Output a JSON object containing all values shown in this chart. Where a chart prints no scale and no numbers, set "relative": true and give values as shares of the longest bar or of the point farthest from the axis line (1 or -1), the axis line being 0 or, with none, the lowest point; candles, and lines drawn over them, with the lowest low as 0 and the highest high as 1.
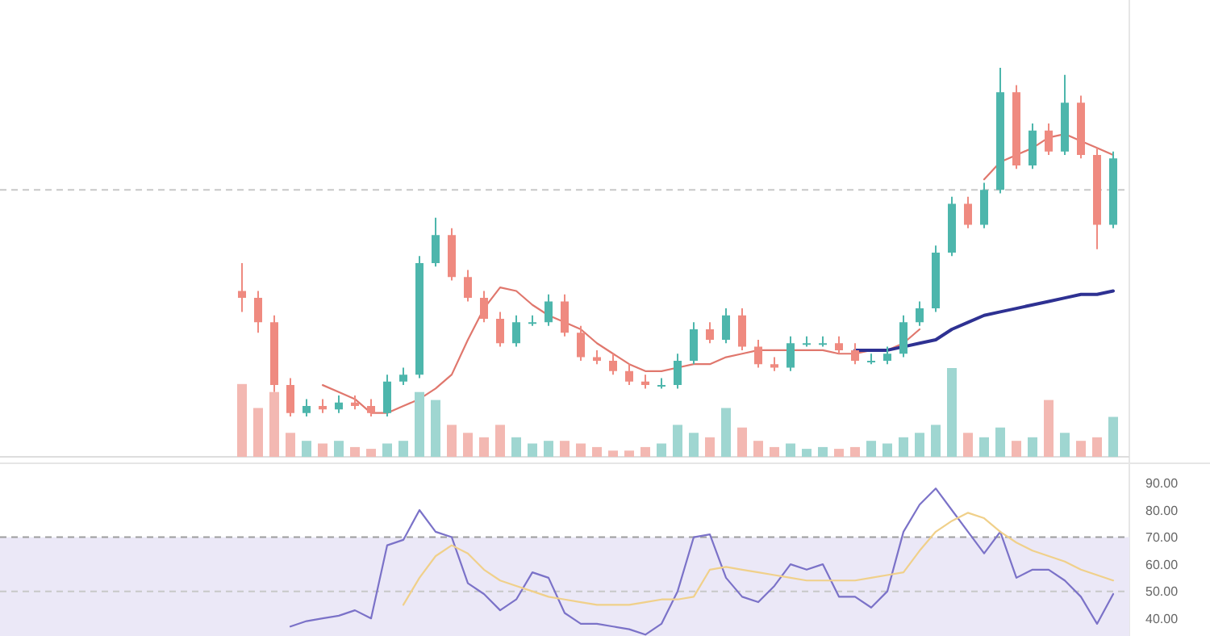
{
  "chart_data": [
    {
      "type": "candlestick",
      "relative": true,
      "tick_labels": false,
      "categories": [
        null,
        null,
        null,
        null,
        null,
        null,
        null,
        null,
        null,
        null,
        null,
        null,
        null,
        null,
        null,
        null,
        null,
        null,
        null,
        null,
        null,
        null,
        null,
        null,
        null,
        null,
        null,
        null,
        null,
        null,
        null,
        null,
        null,
        null,
        null,
        null,
        null,
        null,
        null,
        null,
        null,
        null,
        null,
        null,
        null,
        null,
        null,
        null,
        null,
        null,
        null,
        null,
        null,
        null,
        null
      ],
      "ohlc": [
        [
          0.36,
          0.44,
          0.3,
          0.34
        ],
        [
          0.34,
          0.36,
          0.24,
          0.27
        ],
        [
          0.27,
          0.29,
          0.07,
          0.09
        ],
        [
          0.09,
          0.11,
          0,
          0.01
        ],
        [
          0.01,
          0.05,
          0,
          0.03
        ],
        [
          0.03,
          0.05,
          0.01,
          0.02
        ],
        [
          0.02,
          0.06,
          0.01,
          0.04
        ],
        [
          0.04,
          0.06,
          0.02,
          0.03
        ],
        [
          0.03,
          0.05,
          0,
          0.01
        ],
        [
          0.01,
          0.12,
          0,
          0.1
        ],
        [
          0.1,
          0.14,
          0.09,
          0.12
        ],
        [
          0.12,
          0.46,
          0.11,
          0.44
        ],
        [
          0.44,
          0.57,
          0.43,
          0.52
        ],
        [
          0.52,
          0.54,
          0.39,
          0.4
        ],
        [
          0.4,
          0.42,
          0.33,
          0.34
        ],
        [
          0.34,
          0.36,
          0.27,
          0.28
        ],
        [
          0.28,
          0.3,
          0.2,
          0.21
        ],
        [
          0.21,
          0.29,
          0.2,
          0.27
        ],
        [
          0.27,
          0.29,
          0.26,
          0.27
        ],
        [
          0.27,
          0.35,
          0.26,
          0.33
        ],
        [
          0.33,
          0.35,
          0.23,
          0.24
        ],
        [
          0.24,
          0.26,
          0.16,
          0.17
        ],
        [
          0.17,
          0.19,
          0.15,
          0.16
        ],
        [
          0.16,
          0.18,
          0.12,
          0.13
        ],
        [
          0.13,
          0.15,
          0.09,
          0.1
        ],
        [
          0.1,
          0.12,
          0.08,
          0.09
        ],
        [
          0.09,
          0.11,
          0.08,
          0.09
        ],
        [
          0.09,
          0.18,
          0.08,
          0.16
        ],
        [
          0.16,
          0.27,
          0.15,
          0.25
        ],
        [
          0.25,
          0.27,
          0.21,
          0.22
        ],
        [
          0.22,
          0.31,
          0.21,
          0.29
        ],
        [
          0.29,
          0.31,
          0.19,
          0.2
        ],
        [
          0.2,
          0.22,
          0.14,
          0.15
        ],
        [
          0.15,
          0.17,
          0.13,
          0.14
        ],
        [
          0.14,
          0.23,
          0.13,
          0.21
        ],
        [
          0.21,
          0.23,
          0.2,
          0.21
        ],
        [
          0.21,
          0.23,
          0.2,
          0.21
        ],
        [
          0.21,
          0.23,
          0.18,
          0.19
        ],
        [
          0.19,
          0.21,
          0.15,
          0.16
        ],
        [
          0.16,
          0.18,
          0.15,
          0.16
        ],
        [
          0.16,
          0.2,
          0.15,
          0.18
        ],
        [
          0.18,
          0.29,
          0.17,
          0.27
        ],
        [
          0.27,
          0.33,
          0.26,
          0.31
        ],
        [
          0.31,
          0.49,
          0.3,
          0.47
        ],
        [
          0.47,
          0.63,
          0.46,
          0.61
        ],
        [
          0.61,
          0.63,
          0.54,
          0.55
        ],
        [
          0.55,
          0.67,
          0.54,
          0.65
        ],
        [
          0.65,
          1,
          0.64,
          0.93
        ],
        [
          0.93,
          0.95,
          0.71,
          0.72
        ],
        [
          0.72,
          0.84,
          0.71,
          0.82
        ],
        [
          0.82,
          0.84,
          0.75,
          0.76
        ],
        [
          0.76,
          0.98,
          0.75,
          0.9
        ],
        [
          0.9,
          0.92,
          0.74,
          0.75
        ],
        [
          0.75,
          0.77,
          0.48,
          0.55
        ],
        [
          0.55,
          0.76,
          0.54,
          0.74
        ]
      ],
      "colors": [
        "#ef8a80",
        "#ef8a80",
        "#ef8a80",
        "#ef8a80",
        "#4db6ac",
        "#ef8a80",
        "#4db6ac",
        "#ef8a80",
        "#ef8a80",
        "#4db6ac",
        "#4db6ac",
        "#4db6ac",
        "#4db6ac",
        "#ef8a80",
        "#ef8a80",
        "#ef8a80",
        "#ef8a80",
        "#4db6ac",
        "#4db6ac",
        "#4db6ac",
        "#ef8a80",
        "#ef8a80",
        "#ef8a80",
        "#ef8a80",
        "#ef8a80",
        "#ef8a80",
        "#4db6ac",
        "#4db6ac",
        "#4db6ac",
        "#ef8a80",
        "#4db6ac",
        "#ef8a80",
        "#ef8a80",
        "#ef8a80",
        "#4db6ac",
        "#4db6ac",
        "#4db6ac",
        "#ef8a80",
        "#ef8a80",
        "#4db6ac",
        "#4db6ac",
        "#4db6ac",
        "#4db6ac",
        "#4db6ac",
        "#4db6ac",
        "#ef8a80",
        "#4db6ac",
        "#4db6ac",
        "#ef8a80",
        "#4db6ac",
        "#ef8a80",
        "#4db6ac",
        "#ef8a80",
        "#ef8a80",
        "#4db6ac"
      ],
      "series": [
        {
          "type": "line",
          "color": "#e0776d",
          "values": [
            null,
            null,
            null,
            null,
            null,
            0.09,
            0.07,
            0.05,
            0.01,
            0.01,
            0.03,
            0.05,
            0.08,
            0.12,
            0.22,
            0.31,
            0.37,
            0.36,
            0.32,
            0.29,
            0.27,
            0.25,
            0.21,
            0.18,
            0.15,
            0.13,
            0.13,
            0.14,
            0.15,
            0.15,
            0.17,
            0.18,
            0.19,
            0.19,
            0.19,
            0.19,
            0.19,
            0.18,
            0.18,
            0.19,
            0.19,
            0.21,
            0.25,
            null,
            null,
            null,
            0.68,
            0.73,
            0.75,
            0.77,
            0.8,
            0.81,
            0.79,
            0.77,
            0.75
          ]
        },
        {
          "type": "line",
          "color": "#2e3192",
          "values": [
            null,
            null,
            null,
            null,
            null,
            null,
            null,
            null,
            null,
            null,
            null,
            null,
            null,
            null,
            null,
            null,
            null,
            null,
            null,
            null,
            null,
            null,
            null,
            null,
            null,
            null,
            null,
            null,
            null,
            null,
            null,
            null,
            null,
            null,
            null,
            null,
            null,
            null,
            0.19,
            0.19,
            0.19,
            0.2,
            0.21,
            0.22,
            0.25,
            0.27,
            0.29,
            0.3,
            0.31,
            0.32,
            0.33,
            0.34,
            0.35,
            0.35,
            0.36
          ]
        }
      ],
      "ref_lines": [
        {
          "axis": "y",
          "value": 0.65,
          "line_style": "dashed",
          "color": "#c8c8c8"
        }
      ]
    },
    {
      "type": "bar",
      "relative": true,
      "tick_labels": false,
      "categories": [
        null,
        null,
        null,
        null,
        null,
        null,
        null,
        null,
        null,
        null,
        null,
        null,
        null,
        null,
        null,
        null,
        null,
        null,
        null,
        null,
        null,
        null,
        null,
        null,
        null,
        null,
        null,
        null,
        null,
        null,
        null,
        null,
        null,
        null,
        null,
        null,
        null,
        null,
        null,
        null,
        null,
        null,
        null,
        null,
        null,
        null,
        null,
        null,
        null,
        null,
        null,
        null,
        null,
        null,
        null
      ],
      "values": [
        0.82,
        0.55,
        0.73,
        0.27,
        0.18,
        0.15,
        0.18,
        0.11,
        0.09,
        0.15,
        0.18,
        0.73,
        0.64,
        0.36,
        0.27,
        0.22,
        0.36,
        0.22,
        0.15,
        0.18,
        0.18,
        0.15,
        0.11,
        0.07,
        0.07,
        0.11,
        0.15,
        0.36,
        0.27,
        0.22,
        0.55,
        0.33,
        0.18,
        0.11,
        0.15,
        0.09,
        0.11,
        0.09,
        0.11,
        0.18,
        0.15,
        0.22,
        0.27,
        0.36,
        1,
        0.27,
        0.22,
        0.33,
        0.18,
        0.22,
        0.64,
        0.27,
        0.18,
        0.22,
        0.45
      ],
      "colors": [
        "#f3b8b2",
        "#f3b8b2",
        "#f3b8b2",
        "#f3b8b2",
        "#9fd6d1",
        "#f3b8b2",
        "#9fd6d1",
        "#f3b8b2",
        "#f3b8b2",
        "#9fd6d1",
        "#9fd6d1",
        "#9fd6d1",
        "#9fd6d1",
        "#f3b8b2",
        "#f3b8b2",
        "#f3b8b2",
        "#f3b8b2",
        "#9fd6d1",
        "#9fd6d1",
        "#9fd6d1",
        "#f3b8b2",
        "#f3b8b2",
        "#f3b8b2",
        "#f3b8b2",
        "#f3b8b2",
        "#f3b8b2",
        "#9fd6d1",
        "#9fd6d1",
        "#9fd6d1",
        "#f3b8b2",
        "#9fd6d1",
        "#f3b8b2",
        "#f3b8b2",
        "#f3b8b2",
        "#9fd6d1",
        "#9fd6d1",
        "#9fd6d1",
        "#f3b8b2",
        "#f3b8b2",
        "#9fd6d1",
        "#9fd6d1",
        "#9fd6d1",
        "#9fd6d1",
        "#9fd6d1",
        "#9fd6d1",
        "#f3b8b2",
        "#9fd6d1",
        "#9fd6d1",
        "#f3b8b2",
        "#9fd6d1",
        "#f3b8b2",
        "#9fd6d1",
        "#f3b8b2",
        "#f3b8b2",
        "#9fd6d1"
      ]
    },
    {
      "type": "line",
      "tick_labels": "y",
      "ylim": [
        33.5,
        95.5
      ],
      "categories": [
        null,
        null,
        null,
        null,
        null,
        null,
        null,
        null,
        null,
        null,
        null,
        null,
        null,
        null,
        null,
        null,
        null,
        null,
        null,
        null,
        null,
        null,
        null,
        null,
        null,
        null,
        null,
        null,
        null,
        null,
        null,
        null,
        null,
        null,
        null,
        null,
        null,
        null,
        null,
        null,
        null,
        null,
        null,
        null,
        null,
        null,
        null,
        null,
        null,
        null,
        null,
        null,
        null,
        null,
        null
      ],
      "yticks": [
        {
          "value": 40,
          "label": "40.00"
        },
        {
          "value": 50,
          "label": "50.00"
        },
        {
          "value": 60,
          "label": "60.00"
        },
        {
          "value": 70,
          "label": "70.00"
        },
        {
          "value": 80,
          "label": "80.00"
        },
        {
          "value": 90,
          "label": "90.00"
        }
      ],
      "series": [
        {
          "color": "#7b72c8",
          "values": [
            null,
            null,
            null,
            37,
            39,
            40,
            41,
            43,
            40,
            67,
            69,
            80,
            72,
            70,
            53,
            49,
            43,
            47,
            57,
            55,
            42,
            38,
            38,
            37,
            36,
            34,
            38,
            50,
            70,
            71,
            55,
            48,
            46,
            52,
            60,
            58,
            60,
            48,
            48,
            44,
            50,
            72,
            82,
            88,
            80,
            72,
            64,
            72,
            55,
            58,
            58,
            54,
            48,
            38,
            49
          ]
        },
        {
          "color": "#f0d08a",
          "values": [
            null,
            null,
            null,
            null,
            null,
            null,
            null,
            null,
            null,
            null,
            45,
            55,
            63,
            67,
            64,
            58,
            54,
            52,
            50,
            48,
            47,
            46,
            45,
            45,
            45,
            46,
            47,
            47,
            48,
            58,
            59,
            58,
            57,
            56,
            55,
            54,
            54,
            54,
            54,
            55,
            56,
            57,
            65,
            72,
            76,
            79,
            77,
            72,
            68,
            65,
            63,
            61,
            58,
            56,
            54
          ]
        }
      ],
      "ref_lines": [
        {
          "axis": "y",
          "value": 70,
          "line_style": "dashed",
          "color": "#9e9e9e"
        },
        {
          "axis": "y",
          "value": 50,
          "line_style": "dashed",
          "color": "#c8c8c8"
        }
      ],
      "bands": [
        {
          "axis": "y",
          "from": 30,
          "to": 70,
          "color": "#ebe8f7"
        }
      ]
    }
  ]
}
